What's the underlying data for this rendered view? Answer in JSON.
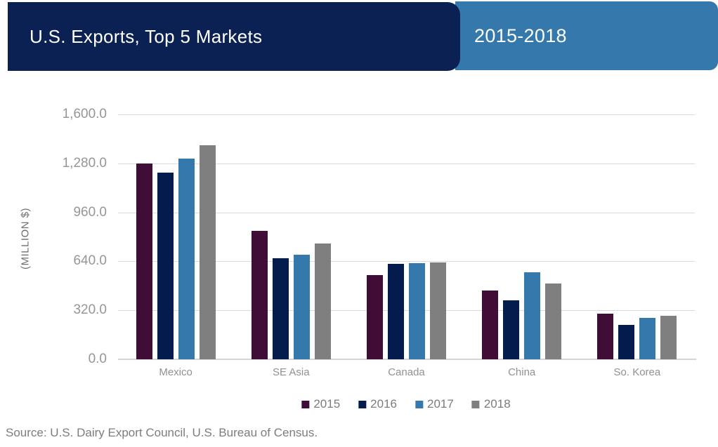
{
  "header": {
    "title": "U.S. Exports, Top 5 Markets",
    "period": "2015-2018",
    "title_bg_color": "#0B2153",
    "period_bg_color": "#3579AC",
    "text_color": "#FFFFFF"
  },
  "chart_data": {
    "type": "bar",
    "title": "U.S. Exports, Top 5 Markets",
    "subtitle": "2015-2018",
    "xlabel": "",
    "ylabel": "(MILLION $)",
    "ylim": [
      0,
      1600
    ],
    "ytick_interval": 320,
    "ytick_labels": [
      "1,600.0",
      "1,280.0",
      "960.0",
      "640.0",
      "320.0",
      "0.0"
    ],
    "grid": true,
    "gridline_color": "#DADADA",
    "legend_position": "bottom",
    "categories": [
      "Mexico",
      "SE Asia",
      "Canada",
      "China",
      "So. Korea"
    ],
    "series": [
      {
        "name": "2015",
        "color": "#3F0D36",
        "values": [
          1280,
          840,
          548,
          448,
          298
        ]
      },
      {
        "name": "2016",
        "color": "#041B4E",
        "values": [
          1220,
          660,
          622,
          384,
          226
        ]
      },
      {
        "name": "2017",
        "color": "#3579AC",
        "values": [
          1310,
          685,
          628,
          568,
          270
        ]
      },
      {
        "name": "2018",
        "color": "#7F7F7F",
        "values": [
          1400,
          758,
          632,
          496,
          284
        ]
      }
    ]
  },
  "footer": {
    "source": "Source: U.S. Dairy Export Council, U.S. Bureau of Census."
  }
}
